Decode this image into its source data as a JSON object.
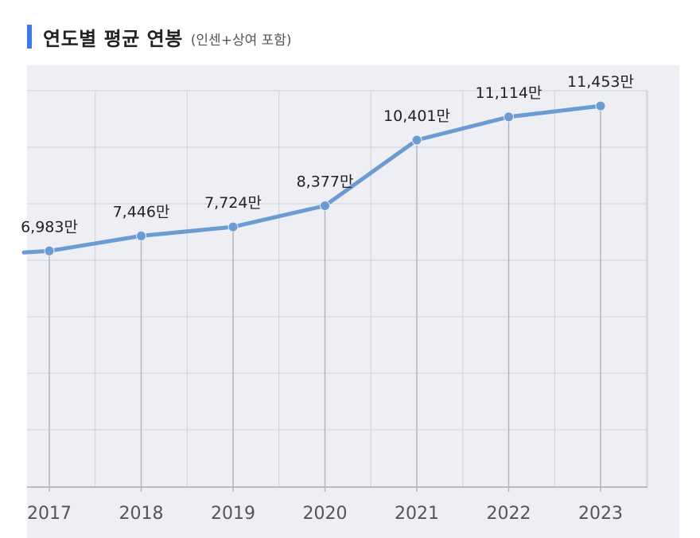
{
  "header": {
    "title": "연도별 평균 연봉",
    "subtitle": "(인센+상여 포함)"
  },
  "colors": {
    "accent": "#3d7be0",
    "line": "#6b9bd3",
    "panel": "#eeeff4",
    "grid": "#cfd0d6"
  },
  "chart_data": {
    "type": "line",
    "title": "연도별 평균 연봉",
    "subtitle": "(인센+상여 포함)",
    "unit": "만",
    "categories": [
      "2017",
      "2018",
      "2019",
      "2020",
      "2021",
      "2022",
      "2023"
    ],
    "values": [
      6983,
      7446,
      7724,
      8377,
      10401,
      11114,
      11453
    ],
    "labels": [
      "6,983만",
      "7,446만",
      "7,724만",
      "8,377만",
      "10,401만",
      "11,114만",
      "11,453만"
    ],
    "ylim": [
      0,
      13000
    ],
    "grid": true,
    "legend": "none"
  }
}
